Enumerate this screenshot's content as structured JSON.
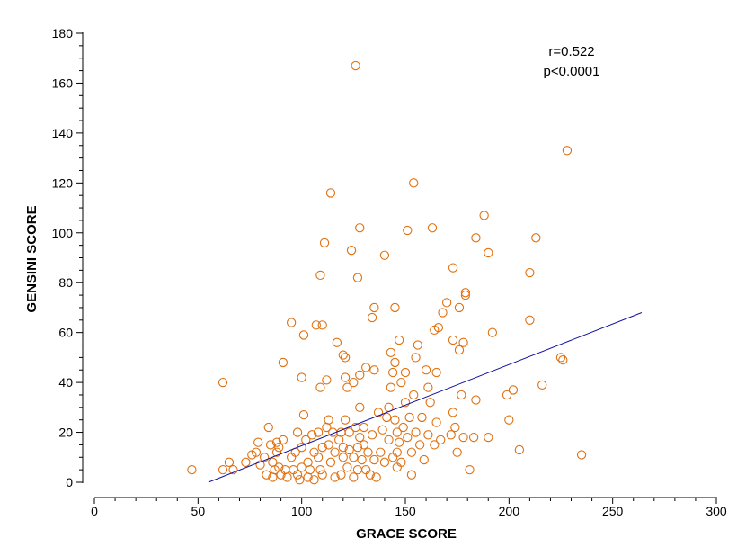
{
  "chart_data": {
    "type": "scatter",
    "title": "",
    "xlabel": "GRACE SCORE",
    "ylabel": "GENSINI SCORE",
    "xlim": [
      0,
      300
    ],
    "ylim": [
      0,
      180
    ],
    "xticks": [
      0,
      50,
      100,
      150,
      200,
      250,
      300
    ],
    "yticks": [
      0,
      20,
      40,
      60,
      80,
      100,
      120,
      140,
      160,
      180
    ],
    "grid": false,
    "annotations": [
      "r=0.522",
      "p<0.0001"
    ],
    "colors": {
      "points": "#E07010",
      "regression": "#1010A0",
      "axis": "#000000"
    },
    "regression_line": {
      "x": [
        55,
        264
      ],
      "y": [
        0,
        68
      ]
    },
    "points": [
      [
        47,
        5
      ],
      [
        62,
        40
      ],
      [
        62,
        5
      ],
      [
        65,
        8
      ],
      [
        67,
        5
      ],
      [
        73,
        8
      ],
      [
        76,
        11
      ],
      [
        78,
        12
      ],
      [
        79,
        16
      ],
      [
        80,
        7
      ],
      [
        82,
        10
      ],
      [
        83,
        3
      ],
      [
        84,
        22
      ],
      [
        85,
        15
      ],
      [
        86,
        8
      ],
      [
        86,
        2
      ],
      [
        87,
        5
      ],
      [
        88,
        12
      ],
      [
        88,
        16
      ],
      [
        89,
        6
      ],
      [
        89,
        14
      ],
      [
        90,
        3
      ],
      [
        91,
        17
      ],
      [
        91,
        48
      ],
      [
        92,
        5
      ],
      [
        93,
        2
      ],
      [
        95,
        64
      ],
      [
        95,
        10
      ],
      [
        96,
        5
      ],
      [
        97,
        12
      ],
      [
        98,
        3
      ],
      [
        98,
        20
      ],
      [
        99,
        1
      ],
      [
        100,
        42
      ],
      [
        100,
        14
      ],
      [
        100,
        6
      ],
      [
        101,
        27
      ],
      [
        101,
        59
      ],
      [
        102,
        17
      ],
      [
        103,
        2
      ],
      [
        103,
        8
      ],
      [
        104,
        5
      ],
      [
        105,
        19
      ],
      [
        106,
        12
      ],
      [
        106,
        1
      ],
      [
        107,
        63
      ],
      [
        108,
        10
      ],
      [
        108,
        20
      ],
      [
        109,
        83
      ],
      [
        109,
        38
      ],
      [
        109,
        5
      ],
      [
        110,
        63
      ],
      [
        110,
        3
      ],
      [
        110,
        14
      ],
      [
        111,
        96
      ],
      [
        112,
        22
      ],
      [
        112,
        41
      ],
      [
        113,
        25
      ],
      [
        113,
        15
      ],
      [
        114,
        116
      ],
      [
        114,
        8
      ],
      [
        115,
        20
      ],
      [
        116,
        2
      ],
      [
        116,
        12
      ],
      [
        117,
        56
      ],
      [
        118,
        17
      ],
      [
        119,
        3
      ],
      [
        119,
        20
      ],
      [
        120,
        51
      ],
      [
        120,
        10
      ],
      [
        120,
        14
      ],
      [
        121,
        50
      ],
      [
        121,
        42
      ],
      [
        121,
        25
      ],
      [
        122,
        38
      ],
      [
        122,
        6
      ],
      [
        123,
        13
      ],
      [
        123,
        20
      ],
      [
        124,
        93
      ],
      [
        125,
        40
      ],
      [
        125,
        10
      ],
      [
        125,
        2
      ],
      [
        126,
        167
      ],
      [
        126,
        22
      ],
      [
        127,
        14
      ],
      [
        127,
        5
      ],
      [
        127,
        82
      ],
      [
        128,
        102
      ],
      [
        128,
        43
      ],
      [
        128,
        30
      ],
      [
        128,
        18
      ],
      [
        129,
        9
      ],
      [
        130,
        22
      ],
      [
        130,
        15
      ],
      [
        131,
        5
      ],
      [
        131,
        46
      ],
      [
        132,
        12
      ],
      [
        133,
        3
      ],
      [
        134,
        19
      ],
      [
        134,
        66
      ],
      [
        135,
        70
      ],
      [
        135,
        45
      ],
      [
        135,
        9
      ],
      [
        136,
        2
      ],
      [
        137,
        28
      ],
      [
        138,
        12
      ],
      [
        139,
        21
      ],
      [
        140,
        91
      ],
      [
        140,
        8
      ],
      [
        141,
        26
      ],
      [
        142,
        30
      ],
      [
        142,
        17
      ],
      [
        143,
        52
      ],
      [
        143,
        38
      ],
      [
        144,
        10
      ],
      [
        144,
        44
      ],
      [
        145,
        70
      ],
      [
        145,
        48
      ],
      [
        145,
        25
      ],
      [
        146,
        20
      ],
      [
        146,
        12
      ],
      [
        146,
        6
      ],
      [
        147,
        57
      ],
      [
        147,
        16
      ],
      [
        148,
        40
      ],
      [
        148,
        8
      ],
      [
        149,
        22
      ],
      [
        150,
        32
      ],
      [
        150,
        44
      ],
      [
        151,
        101
      ],
      [
        151,
        18
      ],
      [
        152,
        26
      ],
      [
        153,
        3
      ],
      [
        153,
        12
      ],
      [
        154,
        120
      ],
      [
        154,
        35
      ],
      [
        155,
        50
      ],
      [
        155,
        20
      ],
      [
        156,
        55
      ],
      [
        157,
        15
      ],
      [
        158,
        26
      ],
      [
        159,
        9
      ],
      [
        160,
        45
      ],
      [
        161,
        38
      ],
      [
        161,
        19
      ],
      [
        162,
        32
      ],
      [
        163,
        102
      ],
      [
        164,
        61
      ],
      [
        164,
        15
      ],
      [
        165,
        44
      ],
      [
        165,
        24
      ],
      [
        166,
        62
      ],
      [
        167,
        17
      ],
      [
        168,
        68
      ],
      [
        170,
        72
      ],
      [
        172,
        19
      ],
      [
        173,
        57
      ],
      [
        173,
        86
      ],
      [
        173,
        28
      ],
      [
        174,
        22
      ],
      [
        175,
        12
      ],
      [
        176,
        70
      ],
      [
        176,
        53
      ],
      [
        177,
        35
      ],
      [
        178,
        18
      ],
      [
        178,
        56
      ],
      [
        179,
        76
      ],
      [
        179,
        75
      ],
      [
        181,
        5
      ],
      [
        183,
        18
      ],
      [
        184,
        98
      ],
      [
        184,
        33
      ],
      [
        188,
        107
      ],
      [
        190,
        92
      ],
      [
        190,
        18
      ],
      [
        192,
        60
      ],
      [
        199,
        35
      ],
      [
        200,
        25
      ],
      [
        202,
        37
      ],
      [
        205,
        13
      ],
      [
        210,
        84
      ],
      [
        210,
        65
      ],
      [
        213,
        98
      ],
      [
        216,
        39
      ],
      [
        225,
        50
      ],
      [
        226,
        49
      ],
      [
        228,
        133
      ],
      [
        235,
        11
      ]
    ]
  }
}
